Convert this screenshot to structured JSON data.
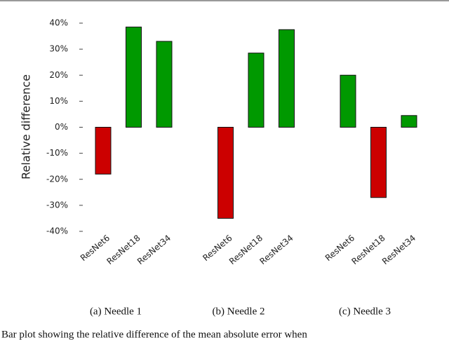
{
  "chart_data": {
    "type": "bar",
    "ylabel": "Relative difference",
    "ylim": [
      -40,
      40
    ],
    "yticks": [
      {
        "value": -40,
        "label": "-40%"
      },
      {
        "value": -30,
        "label": "-30%"
      },
      {
        "value": -20,
        "label": "-20%"
      },
      {
        "value": -10,
        "label": "-10%"
      },
      {
        "value": 0,
        "label": "0%"
      },
      {
        "value": 10,
        "label": "10%"
      },
      {
        "value": 20,
        "label": "20%"
      },
      {
        "value": 30,
        "label": "30%"
      },
      {
        "value": 40,
        "label": "40%"
      }
    ],
    "groups": [
      {
        "caption": "(a)  Needle 1",
        "categories": [
          "ResNet6",
          "ResNet18",
          "ResNet34"
        ],
        "values": [
          -18,
          38.5,
          33
        ],
        "colors": [
          "#cc0000",
          "#009900",
          "#009900"
        ]
      },
      {
        "caption": "(b)  Needle 2",
        "categories": [
          "ResNet6",
          "ResNet18",
          "ResNet34"
        ],
        "values": [
          -35,
          28.5,
          37.5
        ],
        "colors": [
          "#cc0000",
          "#009900",
          "#009900"
        ]
      },
      {
        "caption": "(c)  Needle 3",
        "categories": [
          "ResNet6",
          "ResNet18",
          "ResNet34"
        ],
        "values": [
          20,
          -27,
          4.5
        ],
        "colors": [
          "#009900",
          "#cc0000",
          "#009900"
        ]
      }
    ],
    "figure_caption": "Bar plot showing the relative difference of the mean absolute error when"
  }
}
